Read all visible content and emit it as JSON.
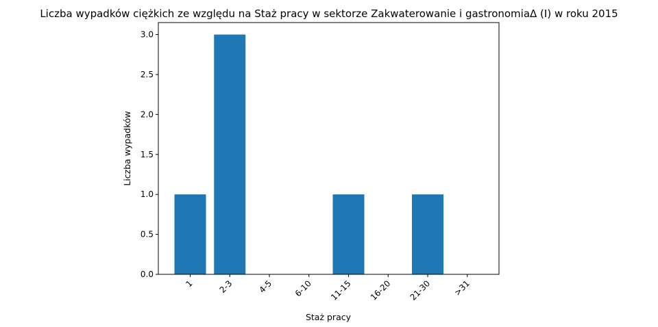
{
  "chart_data": {
    "type": "bar",
    "title": "Liczba wypadków ciężkich ze względu na Staż pracy w sektorze Zakwaterowanie i gastronomiaΔ (I) w roku 2015",
    "xlabel": "Staż pracy",
    "ylabel": "Liczba wypadków",
    "categories": [
      "1",
      "2-3",
      "4-5",
      "6-10",
      "11-15",
      "16-20",
      "21-30",
      ">31"
    ],
    "values": [
      1,
      3,
      0,
      0,
      1,
      0,
      1,
      0
    ],
    "ylim": [
      0,
      3.15
    ],
    "yticks": [
      "0.0",
      "0.5",
      "1.0",
      "1.5",
      "2.0",
      "2.5",
      "3.0"
    ],
    "bar_color": "#1f77b4",
    "grid": false,
    "x_tick_rotation": "45 degrees"
  }
}
